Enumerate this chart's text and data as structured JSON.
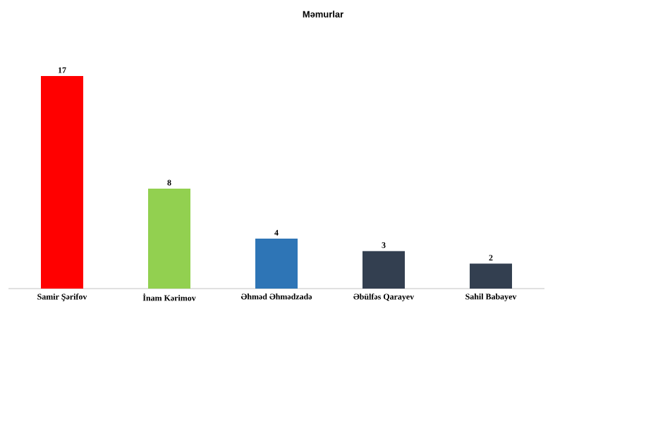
{
  "chart_data": {
    "type": "bar",
    "title": "Məmurlar",
    "categories": [
      "Samir Şərifov",
      "İnam Kərimov",
      "Əhməd Əhmədzadə",
      "Əbülfəs Qarayev",
      "Sahil Babayev"
    ],
    "values": [
      17,
      8,
      4,
      3,
      2
    ],
    "colors": [
      "#ff0000",
      "#92d050",
      "#2e75b6",
      "#333f50",
      "#333f50"
    ],
    "data_labels": true
  }
}
